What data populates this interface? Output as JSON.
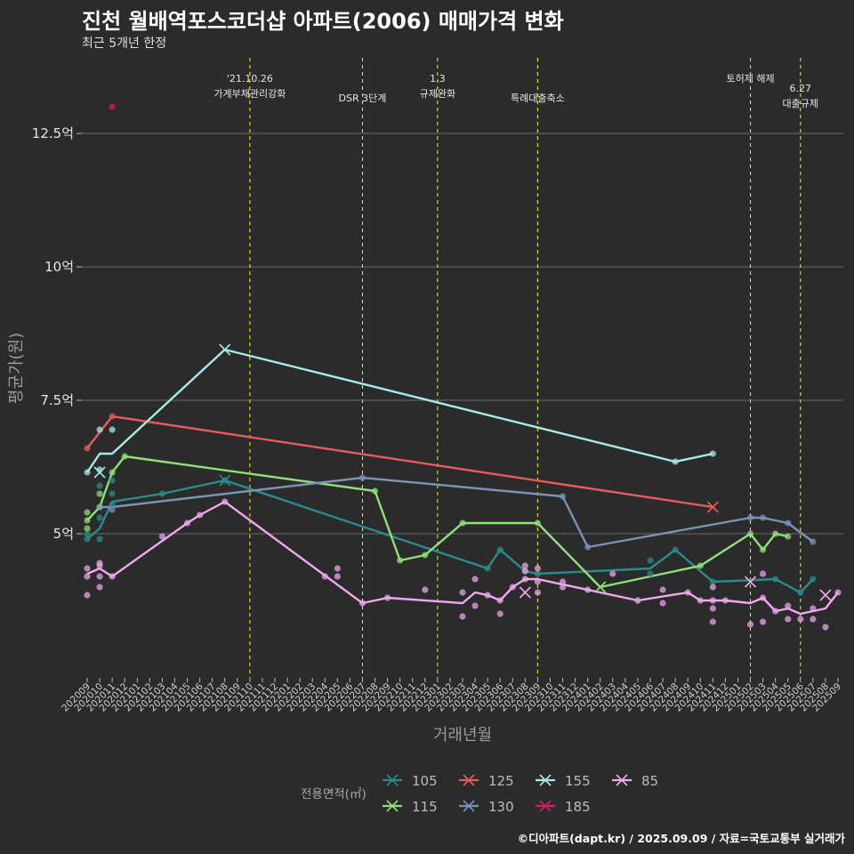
{
  "title": "진천 월배역포스코더샵 아파트(2006) 매매가격 변화",
  "subtitle": "최근 5개년 한정",
  "caption": "©디아파트(dapt.kr) / 2025.09.09 / 자료=국토교통부 실거래가",
  "chart_data": {
    "type": "line",
    "xlabel": "거래년월",
    "ylabel": "평균가(원)",
    "ylim": [
      2.3,
      14.0
    ],
    "yticks": [
      {
        "v": 5,
        "label": "5억"
      },
      {
        "v": 7.5,
        "label": "7.5억"
      },
      {
        "v": 10,
        "label": "10억"
      },
      {
        "v": 12.5,
        "label": "12.5억"
      }
    ],
    "grid": true,
    "legend_position": "bottom",
    "legend_title": "전용면적(㎡)",
    "xticks": [
      "202009",
      "202010",
      "202011",
      "202012",
      "202101",
      "202102",
      "202103",
      "202104",
      "202105",
      "202106",
      "202107",
      "202108",
      "202109",
      "202110",
      "202111",
      "202112",
      "202201",
      "202202",
      "202203",
      "202204",
      "202205",
      "202206",
      "202207",
      "202208",
      "202209",
      "202210",
      "202211",
      "202212",
      "202301",
      "202302",
      "202303",
      "202304",
      "202305",
      "202306",
      "202307",
      "202308",
      "202309",
      "202310",
      "202311",
      "202312",
      "202401",
      "202402",
      "202403",
      "202404",
      "202405",
      "202406",
      "202407",
      "202408",
      "202409",
      "202410",
      "202411",
      "202412",
      "202501",
      "202502",
      "202503",
      "202504",
      "202505",
      "202506",
      "202507",
      "202508",
      "202509"
    ],
    "events": [
      {
        "x": "202110",
        "lines": [
          "'21.10.26",
          "가계부채관리강화"
        ],
        "row": 0
      },
      {
        "x": "202207",
        "lines": [
          "DSR 3단계"
        ],
        "row": 1
      },
      {
        "x": "202301",
        "lines": [
          "1.3",
          "규제완화"
        ],
        "row": 0
      },
      {
        "x": "202309",
        "lines": [
          "특례대출축소"
        ],
        "row": 1
      },
      {
        "x": "202502",
        "lines": [
          "토허제 해제"
        ],
        "row": 0
      },
      {
        "x": "202506",
        "lines": [
          "6.27",
          "대출규제"
        ],
        "row": 0.5
      }
    ],
    "series": [
      {
        "name": "105",
        "color": "#2a8c8c",
        "line": [
          [
            "202009",
            4.9
          ],
          [
            "202010",
            5.1
          ],
          [
            "202011",
            5.6
          ],
          [
            "202103",
            5.75
          ],
          [
            "202108",
            6.0
          ],
          [
            "202305",
            4.35
          ],
          [
            "202306",
            4.7
          ],
          [
            "202308",
            4.3
          ],
          [
            "202309",
            4.25
          ],
          [
            "202406",
            4.35
          ],
          [
            "202408",
            4.7
          ],
          [
            "202411",
            4.1
          ],
          [
            "202504",
            4.15
          ],
          [
            "202506",
            3.9
          ],
          [
            "202507",
            4.15
          ]
        ],
        "points": [
          [
            "202009",
            4.9
          ],
          [
            "202009",
            5.0
          ],
          [
            "202010",
            4.9
          ],
          [
            "202010",
            5.3
          ],
          [
            "202010",
            5.9
          ],
          [
            "202011",
            5.55
          ],
          [
            "202011",
            5.75
          ],
          [
            "202011",
            6.0
          ],
          [
            "202103",
            5.75
          ],
          [
            "202108",
            6.0
          ],
          [
            "202305",
            4.35
          ],
          [
            "202306",
            4.7
          ],
          [
            "202308",
            4.3
          ],
          [
            "202309",
            4.25
          ],
          [
            "202405",
            3.75
          ],
          [
            "202406",
            4.25
          ],
          [
            "202406",
            4.5
          ],
          [
            "202408",
            4.7
          ],
          [
            "202411",
            4.1
          ],
          [
            "202504",
            4.15
          ],
          [
            "202506",
            3.9
          ],
          [
            "202507",
            4.15
          ]
        ],
        "x_marks": [
          [
            "202108",
            6.0
          ]
        ]
      },
      {
        "name": "115",
        "color": "#90e07a",
        "line": [
          [
            "202009",
            5.25
          ],
          [
            "202010",
            5.5
          ],
          [
            "202011",
            6.15
          ],
          [
            "202012",
            6.45
          ],
          [
            "202208",
            5.8
          ],
          [
            "202210",
            4.5
          ],
          [
            "202212",
            4.6
          ],
          [
            "202303",
            5.2
          ],
          [
            "202309",
            5.2
          ],
          [
            "202402",
            4.0
          ],
          [
            "202410",
            4.4
          ],
          [
            "202502",
            5.0
          ],
          [
            "202503",
            4.7
          ],
          [
            "202504",
            5.0
          ],
          [
            "202505",
            4.95
          ]
        ],
        "points": [
          [
            "202009",
            5.1
          ],
          [
            "202009",
            5.25
          ],
          [
            "202009",
            5.4
          ],
          [
            "202010",
            5.5
          ],
          [
            "202010",
            5.75
          ],
          [
            "202011",
            6.15
          ],
          [
            "202012",
            6.45
          ],
          [
            "202208",
            5.8
          ],
          [
            "202210",
            4.5
          ],
          [
            "202212",
            4.6
          ],
          [
            "202303",
            5.2
          ],
          [
            "202309",
            5.2
          ],
          [
            "202410",
            4.4
          ],
          [
            "202502",
            5.0
          ],
          [
            "202503",
            4.7
          ],
          [
            "202504",
            5.0
          ],
          [
            "202505",
            4.95
          ]
        ],
        "x_marks": [
          [
            "202402",
            4.0
          ]
        ]
      },
      {
        "name": "125",
        "color": "#e85c5c",
        "line": [
          [
            "202009",
            6.6
          ],
          [
            "202011",
            7.2
          ],
          [
            "202411",
            5.5
          ]
        ],
        "points": [
          [
            "202009",
            6.6
          ],
          [
            "202011",
            7.2
          ]
        ],
        "x_marks": [
          [
            "202411",
            5.5
          ]
        ]
      },
      {
        "name": "130",
        "color": "#7b93b8",
        "line": [
          [
            "202010",
            5.5
          ],
          [
            "202011",
            5.5
          ],
          [
            "202207",
            6.05
          ],
          [
            "202311",
            5.7
          ],
          [
            "202401",
            4.75
          ],
          [
            "202502",
            5.3
          ],
          [
            "202503",
            5.3
          ],
          [
            "202505",
            5.2
          ],
          [
            "202507",
            4.85
          ]
        ],
        "points": [
          [
            "202010",
            5.5
          ],
          [
            "202011",
            5.45
          ],
          [
            "202207",
            6.05
          ],
          [
            "202311",
            5.7
          ],
          [
            "202401",
            4.75
          ],
          [
            "202502",
            5.3
          ],
          [
            "202503",
            5.3
          ],
          [
            "202505",
            5.2
          ],
          [
            "202507",
            4.85
          ]
        ],
        "x_marks": []
      },
      {
        "name": "155",
        "color": "#a8eaea",
        "line": [
          [
            "202009",
            6.15
          ],
          [
            "202010",
            6.5
          ],
          [
            "202011",
            6.5
          ],
          [
            "202108",
            8.45
          ],
          [
            "202408",
            6.35
          ],
          [
            "202411",
            6.5
          ]
        ],
        "points": [
          [
            "202009",
            6.15
          ],
          [
            "202010",
            6.95
          ],
          [
            "202010",
            6.2
          ],
          [
            "202011",
            6.95
          ],
          [
            "202408",
            6.35
          ],
          [
            "202411",
            6.5
          ]
        ],
        "x_marks": [
          [
            "202010",
            6.15
          ],
          [
            "202108",
            8.45
          ]
        ]
      },
      {
        "name": "185",
        "color": "#d81b60",
        "line": [],
        "points": [
          [
            "202011",
            13.0
          ]
        ],
        "x_marks": []
      },
      {
        "name": "85",
        "color": "#f0a8f0",
        "line": [
          [
            "202009",
            4.25
          ],
          [
            "202010",
            4.35
          ],
          [
            "202011",
            4.2
          ],
          [
            "202105",
            5.2
          ],
          [
            "202106",
            5.35
          ],
          [
            "202108",
            5.6
          ],
          [
            "202207",
            3.7
          ],
          [
            "202209",
            3.8
          ],
          [
            "202303",
            3.7
          ],
          [
            "202304",
            3.9
          ],
          [
            "202305",
            3.85
          ],
          [
            "202306",
            3.75
          ],
          [
            "202307",
            4.0
          ],
          [
            "202308",
            4.15
          ],
          [
            "202309",
            4.15
          ],
          [
            "202405",
            3.75
          ],
          [
            "202409",
            3.9
          ],
          [
            "202410",
            3.75
          ],
          [
            "202411",
            3.75
          ],
          [
            "202412",
            3.75
          ],
          [
            "202502",
            3.7
          ],
          [
            "202503",
            3.8
          ],
          [
            "202504",
            3.55
          ],
          [
            "202505",
            3.6
          ],
          [
            "202506",
            3.5
          ],
          [
            "202507",
            3.55
          ],
          [
            "202508",
            3.6
          ],
          [
            "202509",
            3.9
          ]
        ],
        "points": [
          [
            "202009",
            3.85
          ],
          [
            "202009",
            4.2
          ],
          [
            "202009",
            4.35
          ],
          [
            "202010",
            4.0
          ],
          [
            "202010",
            4.2
          ],
          [
            "202010",
            4.4
          ],
          [
            "202010",
            4.45
          ],
          [
            "202011",
            4.2
          ],
          [
            "202103",
            4.95
          ],
          [
            "202105",
            5.2
          ],
          [
            "202106",
            5.35
          ],
          [
            "202108",
            5.6
          ],
          [
            "202204",
            4.2
          ],
          [
            "202205",
            4.2
          ],
          [
            "202205",
            4.35
          ],
          [
            "202207",
            3.7
          ],
          [
            "202209",
            3.8
          ],
          [
            "202212",
            3.95
          ],
          [
            "202303",
            3.45
          ],
          [
            "202303",
            3.9
          ],
          [
            "202304",
            3.65
          ],
          [
            "202304",
            4.15
          ],
          [
            "202305",
            3.85
          ],
          [
            "202306",
            3.5
          ],
          [
            "202306",
            3.75
          ],
          [
            "202307",
            4.0
          ],
          [
            "202308",
            4.15
          ],
          [
            "202308",
            4.3
          ],
          [
            "202308",
            4.4
          ],
          [
            "202309",
            3.9
          ],
          [
            "202309",
            4.1
          ],
          [
            "202309",
            4.35
          ],
          [
            "202311",
            4.0
          ],
          [
            "202311",
            4.1
          ],
          [
            "202401",
            3.95
          ],
          [
            "202403",
            4.25
          ],
          [
            "202405",
            3.75
          ],
          [
            "202407",
            3.7
          ],
          [
            "202407",
            3.95
          ],
          [
            "202409",
            3.9
          ],
          [
            "202410",
            3.75
          ],
          [
            "202411",
            3.35
          ],
          [
            "202411",
            3.6
          ],
          [
            "202411",
            3.75
          ],
          [
            "202411",
            4.0
          ],
          [
            "202412",
            3.75
          ],
          [
            "202502",
            3.3
          ],
          [
            "202503",
            3.35
          ],
          [
            "202503",
            3.8
          ],
          [
            "202503",
            4.25
          ],
          [
            "202504",
            3.55
          ],
          [
            "202505",
            3.4
          ],
          [
            "202505",
            3.65
          ],
          [
            "202506",
            3.4
          ],
          [
            "202507",
            3.4
          ],
          [
            "202507",
            3.6
          ],
          [
            "202508",
            3.25
          ],
          [
            "202509",
            3.9
          ]
        ],
        "x_marks": [
          [
            "202308",
            3.9
          ],
          [
            "202502",
            4.1
          ],
          [
            "202508",
            3.85
          ]
        ]
      }
    ]
  }
}
